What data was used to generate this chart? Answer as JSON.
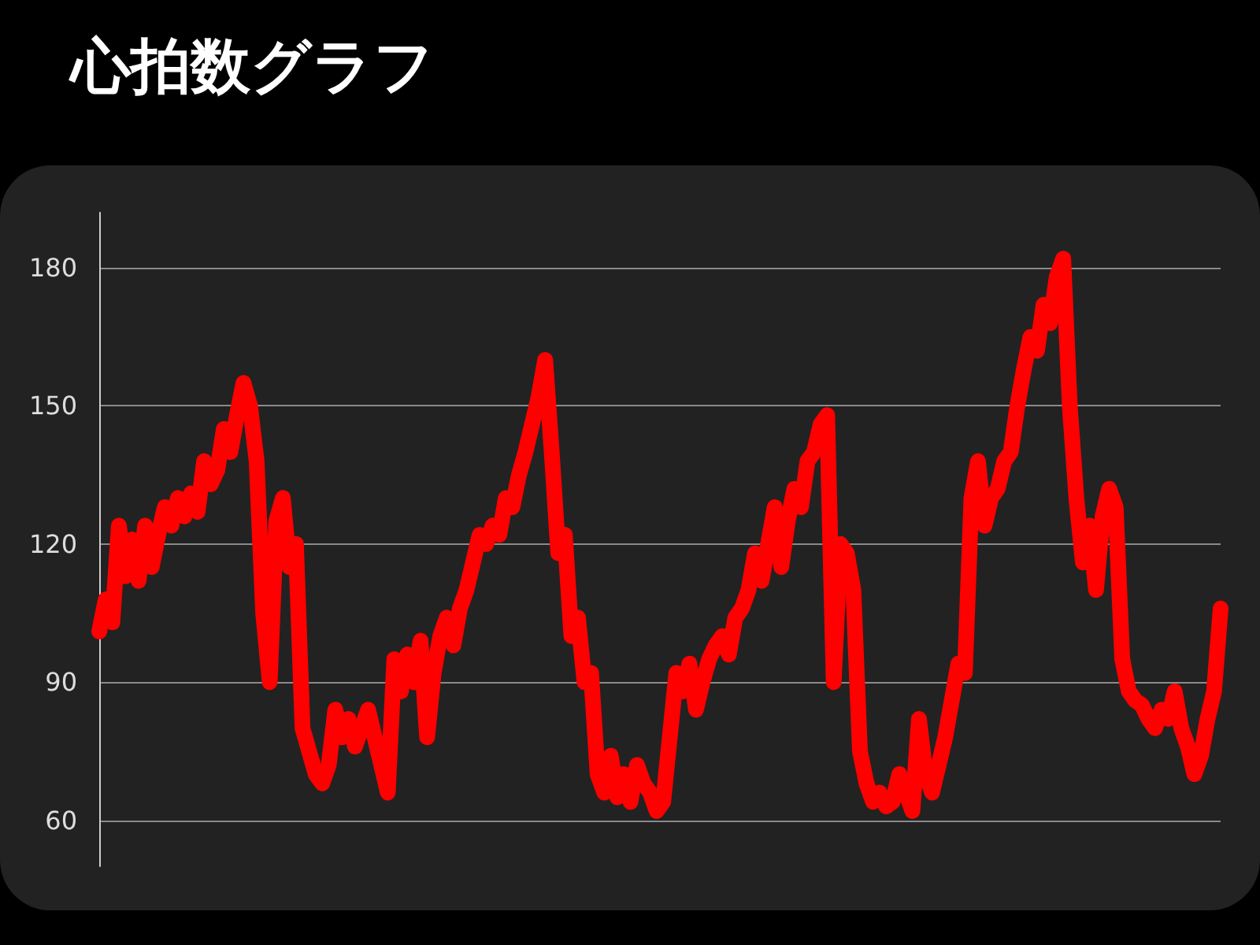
{
  "chart_data": {
    "type": "line",
    "title": "心拍数グラフ",
    "categories": [
      null,
      null,
      null,
      null,
      null,
      null,
      null,
      null,
      null,
      null,
      null,
      null,
      null,
      null,
      null,
      null,
      null,
      null,
      null,
      null,
      null,
      null,
      null,
      null,
      null,
      null,
      null,
      null,
      null,
      null,
      null,
      null,
      null,
      null,
      null,
      null,
      null,
      null,
      null,
      null,
      null,
      null,
      null,
      null,
      null,
      null,
      null,
      null,
      null,
      null,
      null,
      null,
      null,
      null,
      null,
      null,
      null,
      null,
      null,
      null,
      null,
      null,
      null,
      null,
      null,
      null,
      null,
      null,
      null,
      null,
      null,
      null,
      null,
      null,
      null,
      null,
      null,
      null,
      null,
      null,
      null,
      null,
      null,
      null,
      null,
      null,
      null,
      null,
      null,
      null,
      null,
      null,
      null,
      null,
      null,
      null,
      null,
      null,
      null,
      null,
      null,
      null,
      null,
      null,
      null,
      null,
      null,
      null,
      null,
      null,
      null,
      null,
      null,
      null,
      null,
      null,
      null,
      null,
      null,
      null,
      null,
      null,
      null,
      null,
      null,
      null,
      null,
      null,
      null,
      null,
      null,
      null,
      null,
      null,
      null,
      null,
      null,
      null,
      null,
      null,
      null,
      null,
      null,
      null,
      null,
      null,
      null,
      null,
      null,
      null,
      null,
      null,
      null,
      null,
      null,
      null,
      null,
      null,
      null,
      null,
      null,
      null,
      null,
      null,
      null,
      null,
      null,
      null,
      null,
      null,
      null,
      null
    ],
    "series": [
      {
        "color": "#ff0000",
        "values": [
          101,
          108,
          103,
          124,
          113,
          121,
          112,
          124,
          115,
          122,
          128,
          124,
          130,
          126,
          131,
          127,
          138,
          133,
          136,
          145,
          140,
          148,
          155,
          150,
          138,
          105,
          90,
          125,
          130,
          115,
          120,
          80,
          75,
          70,
          68,
          72,
          84,
          78,
          82,
          76,
          80,
          84,
          78,
          72,
          66,
          95,
          88,
          96,
          90,
          99,
          78,
          92,
          100,
          104,
          98,
          106,
          110,
          116,
          122,
          120,
          124,
          122,
          130,
          128,
          135,
          140,
          146,
          152,
          160,
          140,
          118,
          122,
          100,
          104,
          90,
          92,
          70,
          66,
          74,
          65,
          70,
          64,
          72,
          68,
          66,
          62,
          64,
          78,
          92,
          88,
          94,
          84,
          90,
          95,
          98,
          100,
          96,
          104,
          106,
          110,
          118,
          112,
          120,
          128,
          115,
          125,
          132,
          128,
          138,
          140,
          146,
          148,
          90,
          120,
          118,
          110,
          75,
          68,
          64,
          66,
          63,
          64,
          70,
          66,
          62,
          82,
          70,
          66,
          72,
          78,
          86,
          94,
          92,
          130,
          138,
          124,
          130,
          132,
          138,
          140,
          150,
          158,
          165,
          162,
          172,
          168,
          178,
          182,
          150,
          130,
          116,
          124,
          110,
          126,
          132,
          128,
          95,
          88,
          86,
          85,
          82,
          80,
          84,
          82,
          88,
          80,
          76,
          70,
          74,
          82,
          88,
          106
        ]
      }
    ],
    "ylim": [
      50,
      192
    ],
    "yticks": [
      60,
      90,
      120,
      150,
      180
    ],
    "grid": "y",
    "tick_labels": "y"
  }
}
